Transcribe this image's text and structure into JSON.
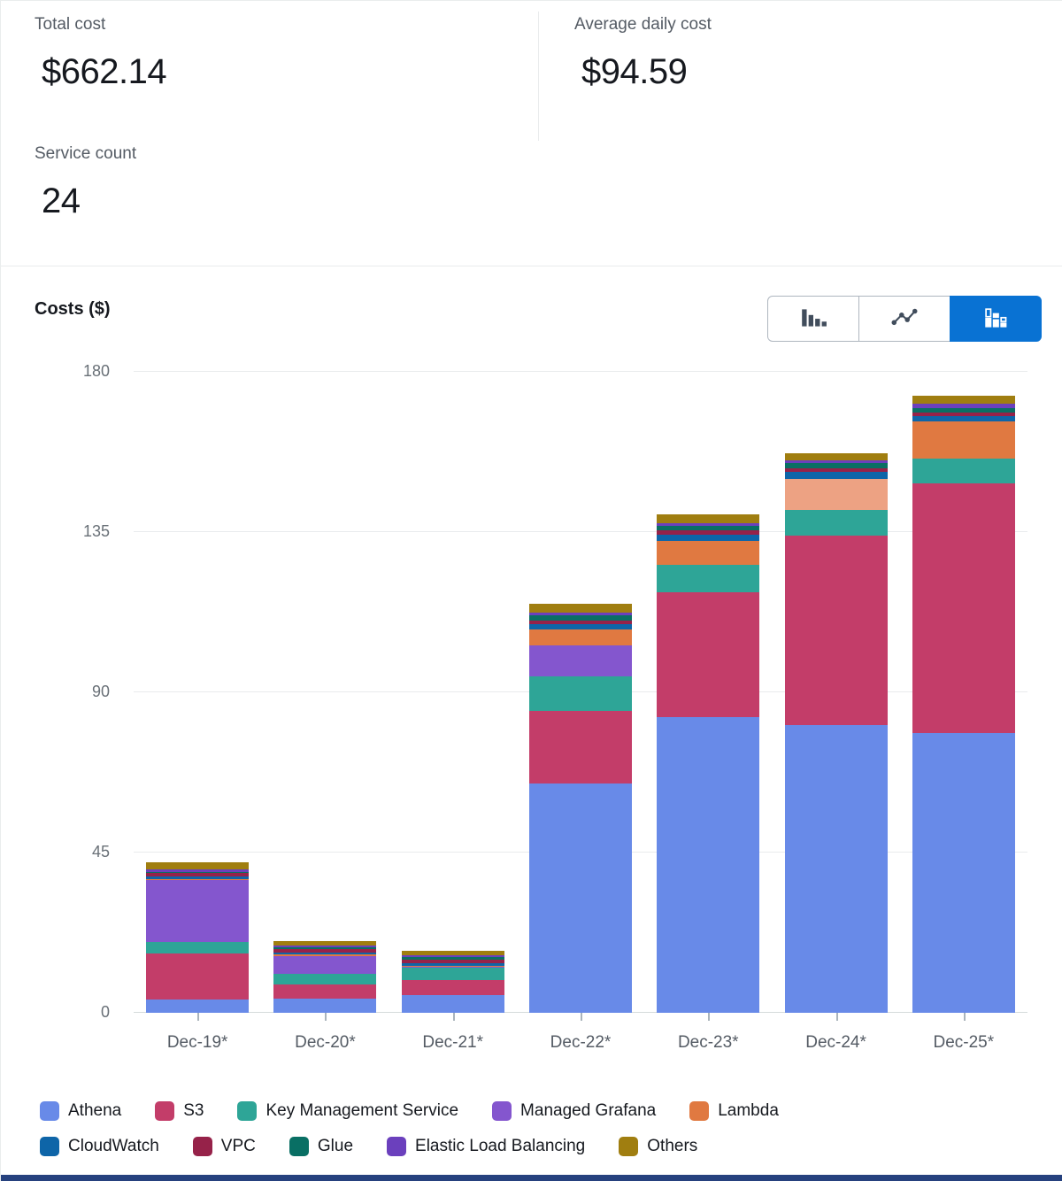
{
  "summary": {
    "total_cost": {
      "label": "Total cost",
      "value": "$662.14"
    },
    "average_daily_cost": {
      "label": "Average daily cost",
      "value": "$94.59"
    },
    "service_count": {
      "label": "Service count",
      "value": "24"
    }
  },
  "chart": {
    "title": "Costs ($)",
    "toggles": [
      {
        "name": "bar-chart",
        "icon": "bar-chart-icon",
        "active": false
      },
      {
        "name": "line-chart",
        "icon": "line-chart-icon",
        "active": false
      },
      {
        "name": "stacked-bar-chart",
        "icon": "stacked-bar-chart-icon",
        "active": true
      }
    ],
    "colors": {
      "accent": "#0972d3",
      "bottom_bar": "#26417e"
    }
  },
  "chart_data": {
    "type": "bar",
    "stacked": true,
    "title": "Costs ($)",
    "ylabel": "Costs ($)",
    "ylim": [
      0,
      180
    ],
    "yticks": [
      0,
      45,
      90,
      135,
      180
    ],
    "grid": true,
    "legend_position": "bottom",
    "legend_rows": [
      [
        0,
        1,
        2,
        3,
        4
      ],
      [
        5,
        6,
        7,
        8,
        9
      ]
    ],
    "categories": [
      "Dec-19*",
      "Dec-20*",
      "Dec-21*",
      "Dec-22*",
      "Dec-23*",
      "Dec-24*",
      "Dec-25*"
    ],
    "series": [
      {
        "name": "Athena",
        "color": "#688ae8",
        "values": [
          3.7,
          4.1,
          5.1,
          64.5,
          83.0,
          80.8,
          78.6
        ]
      },
      {
        "name": "S3",
        "color": "#c33d69",
        "values": [
          12.9,
          3.8,
          4.0,
          20.2,
          35.1,
          53.1,
          70.0
        ]
      },
      {
        "name": "Key Management Service",
        "color": "#2ea597",
        "values": [
          3.2,
          3.1,
          3.7,
          9.7,
          7.6,
          7.2,
          7.0
        ]
      },
      {
        "name": "Managed Grafana",
        "color": "#8456ce",
        "values": [
          17.4,
          4.9,
          0.2,
          8.9,
          0,
          0,
          0
        ]
      },
      {
        "name": "Lambda",
        "color": "#e07941",
        "values": [
          0.3,
          0.4,
          0.2,
          4.3,
          6.9,
          8.9,
          10.4
        ],
        "color_overrides": {
          "5": "#eda283"
        }
      },
      {
        "name": "CloudWatch",
        "color": "#0e65a8",
        "values": [
          0.8,
          0.7,
          0.7,
          1.7,
          1.6,
          1.8,
          1.5
        ]
      },
      {
        "name": "VPC",
        "color": "#962249",
        "values": [
          1.0,
          0.9,
          1.1,
          0.8,
          1.3,
          1.0,
          1.1
        ]
      },
      {
        "name": "Glue",
        "color": "#096f64",
        "values": [
          0.3,
          0.4,
          0.6,
          1.5,
          1.2,
          1.5,
          1.3
        ]
      },
      {
        "name": "Elastic Load Balancing",
        "color": "#6b40bd",
        "values": [
          0.6,
          0.6,
          0.6,
          0.8,
          0.8,
          0.8,
          1.1
        ]
      },
      {
        "name": "Others",
        "color": "#a07e10",
        "values": [
          2.1,
          1.3,
          1.2,
          2.5,
          2.6,
          2.1,
          2.3
        ]
      }
    ]
  }
}
